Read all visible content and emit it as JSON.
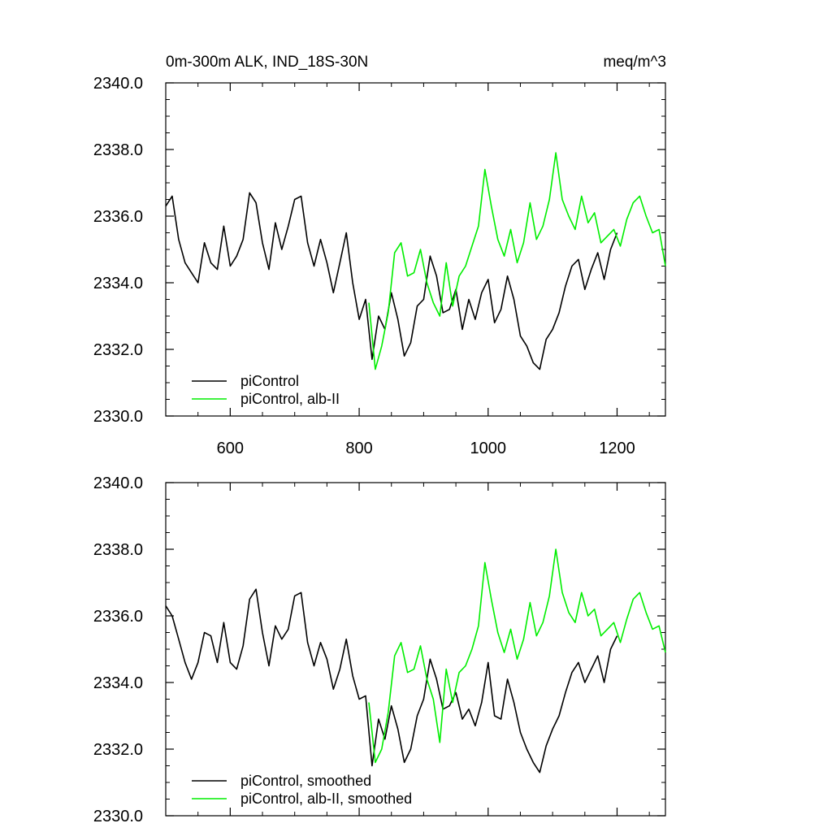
{
  "chart_data": [
    {
      "type": "line",
      "title": "0m-300m ALK, IND_18S-30N",
      "units": "meq/m^3",
      "xlim": [
        500,
        1275
      ],
      "ylim": [
        2330.0,
        2340.0
      ],
      "x_ticks": [
        600,
        800,
        1000,
        1200
      ],
      "y_ticks": [
        2330.0,
        2332.0,
        2334.0,
        2336.0,
        2338.0,
        2340.0
      ],
      "x_tick_labels": [
        "600",
        "800",
        "1000",
        "1200"
      ],
      "y_tick_labels": [
        "2330.0",
        "2332.0",
        "2334.0",
        "2336.0",
        "2338.0",
        "2340.0"
      ],
      "legend_position": "bottom-left",
      "series": [
        {
          "name": "piControl",
          "color": "#000000",
          "x": [
            500,
            510,
            520,
            530,
            540,
            550,
            560,
            570,
            580,
            590,
            600,
            610,
            620,
            630,
            640,
            650,
            660,
            670,
            680,
            690,
            700,
            710,
            720,
            730,
            740,
            750,
            760,
            770,
            780,
            790,
            800,
            810,
            820,
            830,
            840,
            850,
            860,
            870,
            880,
            890,
            900,
            910,
            920,
            930,
            940,
            950,
            960,
            970,
            980,
            990,
            1000,
            1010,
            1020,
            1030,
            1040,
            1050,
            1060,
            1070,
            1080,
            1090,
            1100,
            1110,
            1120,
            1130,
            1140,
            1150,
            1160,
            1170,
            1180,
            1190,
            1200
          ],
          "values": [
            2336.3,
            2336.6,
            2335.3,
            2334.6,
            2334.3,
            2334.0,
            2335.2,
            2334.6,
            2334.4,
            2335.7,
            2334.5,
            2334.8,
            2335.3,
            2336.7,
            2336.4,
            2335.2,
            2334.4,
            2335.8,
            2335.0,
            2335.7,
            2336.5,
            2336.6,
            2335.2,
            2334.5,
            2335.3,
            2334.6,
            2333.7,
            2334.6,
            2335.5,
            2334.0,
            2332.9,
            2333.5,
            2331.7,
            2333.0,
            2332.6,
            2333.7,
            2332.9,
            2331.8,
            2332.2,
            2333.3,
            2333.5,
            2334.8,
            2334.2,
            2333.1,
            2333.2,
            2333.8,
            2332.6,
            2333.5,
            2332.9,
            2333.7,
            2334.1,
            2332.8,
            2333.2,
            2334.2,
            2333.5,
            2332.4,
            2332.1,
            2331.6,
            2331.4,
            2332.3,
            2332.6,
            2333.1,
            2333.9,
            2334.5,
            2334.7,
            2333.8,
            2334.4,
            2334.9,
            2334.1,
            2335.0,
            2335.5
          ]
        },
        {
          "name": "piControl, alb-II",
          "color": "#00ee00",
          "x": [
            815,
            825,
            835,
            845,
            855,
            865,
            875,
            885,
            895,
            905,
            915,
            925,
            935,
            945,
            955,
            965,
            975,
            985,
            995,
            1005,
            1015,
            1025,
            1035,
            1045,
            1055,
            1065,
            1075,
            1085,
            1095,
            1105,
            1115,
            1125,
            1135,
            1145,
            1155,
            1165,
            1175,
            1185,
            1195,
            1205,
            1215,
            1225,
            1235,
            1245,
            1255,
            1265,
            1275
          ],
          "values": [
            2333.4,
            2331.4,
            2332.1,
            2333.1,
            2334.9,
            2335.2,
            2334.2,
            2334.3,
            2335.0,
            2334.0,
            2333.4,
            2333.0,
            2334.6,
            2333.3,
            2334.2,
            2334.5,
            2335.1,
            2335.7,
            2337.4,
            2336.3,
            2335.3,
            2334.8,
            2335.6,
            2334.6,
            2335.2,
            2336.4,
            2335.3,
            2335.7,
            2336.5,
            2337.9,
            2336.5,
            2336.0,
            2335.6,
            2336.6,
            2335.8,
            2336.1,
            2335.2,
            2335.4,
            2335.6,
            2335.1,
            2335.9,
            2336.4,
            2336.6,
            2336.0,
            2335.5,
            2335.6,
            2334.5
          ]
        }
      ],
      "legend": [
        "piControl",
        "piControl, alb-II"
      ]
    },
    {
      "type": "line",
      "title": "",
      "xlim": [
        500,
        1275
      ],
      "ylim": [
        2330.0,
        2340.0
      ],
      "x_ticks": [
        600,
        800,
        1000,
        1200
      ],
      "y_ticks": [
        2330.0,
        2332.0,
        2334.0,
        2336.0,
        2338.0,
        2340.0
      ],
      "y_tick_labels": [
        "2330.0",
        "2332.0",
        "2334.0",
        "2336.0",
        "2338.0",
        "2340.0"
      ],
      "legend_position": "bottom-left",
      "series": [
        {
          "name": "piControl, smoothed",
          "color": "#000000",
          "x": [
            500,
            510,
            520,
            530,
            540,
            550,
            560,
            570,
            580,
            590,
            600,
            610,
            620,
            630,
            640,
            650,
            660,
            670,
            680,
            690,
            700,
            710,
            720,
            730,
            740,
            750,
            760,
            770,
            780,
            790,
            800,
            810,
            820,
            830,
            840,
            850,
            860,
            870,
            880,
            890,
            900,
            910,
            920,
            930,
            940,
            950,
            960,
            970,
            980,
            990,
            1000,
            1010,
            1020,
            1030,
            1040,
            1050,
            1060,
            1070,
            1080,
            1090,
            1100,
            1110,
            1120,
            1130,
            1140,
            1150,
            1160,
            1170,
            1180,
            1190,
            1200
          ],
          "values": [
            2336.3,
            2336.0,
            2335.3,
            2334.6,
            2334.1,
            2334.6,
            2335.5,
            2335.4,
            2334.6,
            2335.8,
            2334.6,
            2334.4,
            2335.1,
            2336.5,
            2336.8,
            2335.5,
            2334.5,
            2335.7,
            2335.3,
            2335.6,
            2336.6,
            2336.7,
            2335.2,
            2334.5,
            2335.2,
            2334.7,
            2333.8,
            2334.4,
            2335.3,
            2334.2,
            2333.5,
            2333.6,
            2331.5,
            2332.9,
            2332.3,
            2333.3,
            2332.6,
            2331.6,
            2332.0,
            2333.0,
            2333.5,
            2334.7,
            2334.1,
            2333.2,
            2333.3,
            2333.7,
            2332.9,
            2333.2,
            2332.7,
            2333.4,
            2334.6,
            2333.0,
            2332.9,
            2334.1,
            2333.4,
            2332.5,
            2332.0,
            2331.6,
            2331.3,
            2332.1,
            2332.6,
            2333.0,
            2333.7,
            2334.3,
            2334.6,
            2334.0,
            2334.4,
            2334.8,
            2334.0,
            2335.0,
            2335.4
          ]
        },
        {
          "name": "piControl, alb-II, smoothed",
          "color": "#00ee00",
          "x": [
            815,
            825,
            835,
            845,
            855,
            865,
            875,
            885,
            895,
            905,
            915,
            925,
            935,
            945,
            955,
            965,
            975,
            985,
            995,
            1005,
            1015,
            1025,
            1035,
            1045,
            1055,
            1065,
            1075,
            1085,
            1095,
            1105,
            1115,
            1125,
            1135,
            1145,
            1155,
            1165,
            1175,
            1185,
            1195,
            1205,
            1215,
            1225,
            1235,
            1245,
            1255,
            1265,
            1275
          ],
          "values": [
            2333.4,
            2331.6,
            2332.0,
            2333.1,
            2334.8,
            2335.2,
            2334.3,
            2334.4,
            2335.1,
            2334.1,
            2333.5,
            2332.2,
            2334.4,
            2333.4,
            2334.3,
            2334.5,
            2335.0,
            2335.7,
            2337.6,
            2336.5,
            2335.5,
            2334.9,
            2335.6,
            2334.7,
            2335.3,
            2336.4,
            2335.4,
            2335.8,
            2336.6,
            2338.0,
            2336.7,
            2336.1,
            2335.8,
            2336.7,
            2336.0,
            2336.2,
            2335.4,
            2335.6,
            2335.8,
            2335.2,
            2335.9,
            2336.5,
            2336.7,
            2336.1,
            2335.6,
            2335.7,
            2334.9
          ]
        }
      ],
      "legend": [
        "piControl, smoothed",
        "piControl, alb-II, smoothed"
      ]
    }
  ]
}
